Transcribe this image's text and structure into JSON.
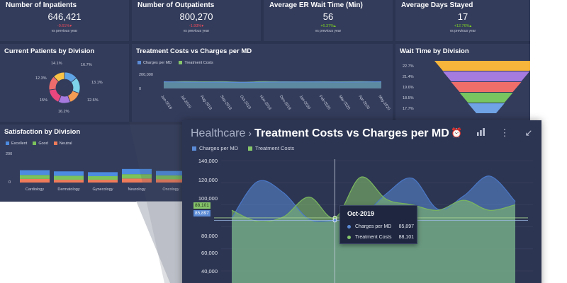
{
  "colors": {
    "charges": "#5b8bd6",
    "treatment": "#86c56a",
    "negative": "#ef4c5b",
    "positive": "#7ed321",
    "donut": [
      "#5fa5e6",
      "#7cd3ea",
      "#f29b52",
      "#a77ae0",
      "#e9477e",
      "#ef6c6c",
      "#f7c245"
    ],
    "funnel": [
      "#f7b53b",
      "#a67be0",
      "#ef6e6a",
      "#78c65f",
      "#6fa3e6"
    ],
    "satisfaction": {
      "excellent": "#4c8be0",
      "good": "#7cc35b",
      "neutral": "#ef7b5a"
    }
  },
  "kpis": [
    {
      "title": "Number of Inpatients",
      "value": "646,421",
      "delta": "-0.61%",
      "arrow": "▾",
      "direction": "negative",
      "sub": "vs previous year"
    },
    {
      "title": "Number of Outpatients",
      "value": "800,270",
      "delta": "-1.93%",
      "arrow": "▾",
      "direction": "negative",
      "sub": "vs previous year"
    },
    {
      "title": "Average ER Wait Time (Min)",
      "value": "56",
      "delta": "+6.37%",
      "arrow": "▴",
      "direction": "positive",
      "sub": "vs previous year"
    },
    {
      "title": "Average Days Stayed",
      "value": "17",
      "delta": "+12.76%",
      "arrow": "▴",
      "direction": "positive",
      "sub": "vs previous year"
    }
  ],
  "patients": {
    "title": "Current Patients by Division",
    "labels": [
      "14.1%",
      "16.7%",
      "13.1%",
      "12.6%",
      "16.2%",
      "15%",
      "12.3%"
    ]
  },
  "costs_small": {
    "title": "Treatment Costs vs Charges per MD",
    "legend": [
      "Charges per MD",
      "Treatment Costs"
    ],
    "y_ticks": [
      "200,000",
      "0"
    ],
    "x_labels": [
      "Jun-2019",
      "Jul-2019",
      "Aug-2019",
      "Sep-2019",
      "Oct-2019",
      "Nov-2019",
      "Dec-2019",
      "Jan-2020",
      "Feb-2020",
      "Mar-2020",
      "Apr-2020",
      "May-2020"
    ]
  },
  "wait": {
    "title": "Wait Time by Division",
    "labels": [
      "22.7%",
      "21.4%",
      "19.6%",
      "18.5%",
      "17.7%"
    ]
  },
  "satisfaction": {
    "title": "Satisfaction by Division",
    "legend": [
      "Excellent",
      "Good",
      "Neutral"
    ],
    "y_ticks": [
      "200",
      "0"
    ],
    "categories": [
      "Cardiology",
      "Dermatology",
      "Gynecology",
      "Neurology",
      "Oncology"
    ]
  },
  "detail": {
    "breadcrumb": "Healthcare",
    "separator": "›",
    "title": "Treatment Costs vs Charges per MD",
    "legend": [
      "Charges per MD",
      "Treatment Costs"
    ],
    "y_ticks": [
      "140,000",
      "120,000",
      "100,000",
      "80,000",
      "60,000",
      "40,000"
    ],
    "flag_treatment": "88,101",
    "flag_charges": "85,897",
    "tooltip": {
      "title": "Oct-2019",
      "rows": [
        {
          "label": "Charges per MD",
          "value": "85,897"
        },
        {
          "label": "Treatment Costs",
          "value": "88,101"
        }
      ]
    }
  },
  "chart_data": [
    {
      "type": "pie",
      "title": "Current Patients by Division",
      "values": [
        14.1,
        16.7,
        13.1,
        12.6,
        16.2,
        15,
        12.3
      ],
      "labels": [
        "14.1%",
        "16.7%",
        "13.1%",
        "12.6%",
        "16.2%",
        "15%",
        "12.3%"
      ]
    },
    {
      "type": "area",
      "title": "Treatment Costs vs Charges per MD",
      "categories": [
        "Jun-2019",
        "Jul-2019",
        "Aug-2019",
        "Sep-2019",
        "Oct-2019",
        "Nov-2019",
        "Dec-2019",
        "Jan-2020",
        "Feb-2020",
        "Mar-2020",
        "Apr-2020",
        "May-2020"
      ],
      "series": [
        {
          "name": "Charges per MD",
          "values": [
            95000,
            90000,
            88000,
            89000,
            85897,
            89000,
            91000,
            93000,
            92000,
            90000,
            92000,
            95000
          ]
        },
        {
          "name": "Treatment Costs",
          "values": [
            92000,
            96000,
            94000,
            95000,
            88101,
            96000,
            94000,
            93000,
            95000,
            94000,
            96000,
            93000
          ]
        }
      ],
      "ylim": [
        0,
        300000
      ]
    },
    {
      "type": "bar",
      "title": "Wait Time by Division",
      "values": [
        22.7,
        21.4,
        19.6,
        18.5,
        17.7
      ]
    },
    {
      "type": "bar",
      "title": "Satisfaction by Division",
      "categories": [
        "Cardiology",
        "Dermatology",
        "Gynecology",
        "Neurology",
        "Oncology"
      ],
      "series": [
        {
          "name": "Excellent",
          "values": [
            60,
            55,
            50,
            65,
            55
          ]
        },
        {
          "name": "Good",
          "values": [
            50,
            50,
            45,
            55,
            50
          ]
        },
        {
          "name": "Neutral",
          "values": [
            45,
            35,
            35,
            50,
            40
          ]
        }
      ],
      "ylim": [
        0,
        250
      ]
    },
    {
      "type": "area",
      "title": "Treatment Costs vs Charges per MD",
      "categories": [
        "Jun-2019",
        "Jul-2019",
        "Aug-2019",
        "Sep-2019",
        "Oct-2019",
        "Nov-2019",
        "Dec-2019",
        "Jan-2020",
        "Feb-2020",
        "Mar-2020",
        "Apr-2020",
        "May-2020"
      ],
      "series": [
        {
          "name": "Charges per MD",
          "values": [
            88000,
            121000,
            111000,
            87000,
            85897,
            89000,
            110000,
            124000,
            96000,
            108000,
            126000,
            103000
          ]
        },
        {
          "name": "Treatment Costs",
          "values": [
            95000,
            85000,
            89000,
            107000,
            88101,
            125000,
            105000,
            100000,
            95000,
            104000,
            95000,
            100000
          ]
        }
      ],
      "ylim": [
        40000,
        140000
      ]
    }
  ]
}
